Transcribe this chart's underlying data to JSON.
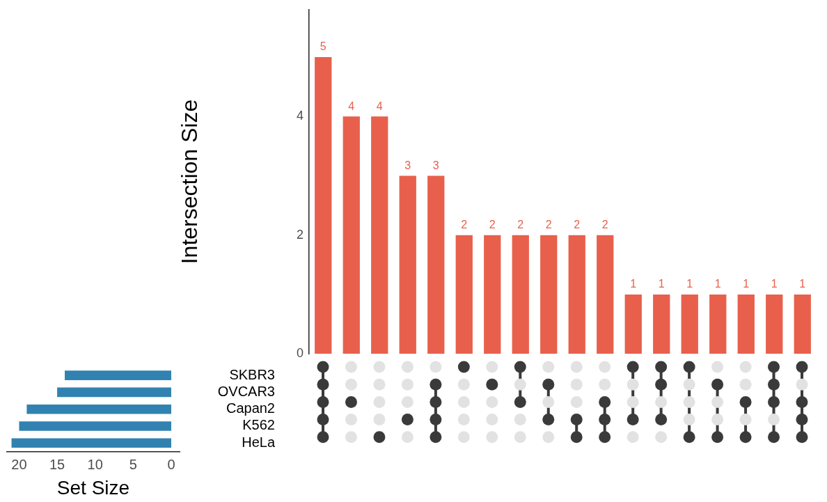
{
  "chart_data": [
    {
      "type": "bar",
      "ylabel": "Intersection Size",
      "categories": [
        null,
        null,
        null,
        null,
        null,
        null,
        null,
        null,
        null,
        null,
        null,
        null,
        null,
        null,
        null,
        null,
        null,
        null
      ],
      "values": [
        5,
        4,
        4,
        3,
        3,
        2,
        2,
        2,
        2,
        2,
        2,
        1,
        1,
        1,
        1,
        1,
        1,
        1
      ],
      "color": "#e8604c",
      "data_labels": true,
      "ylim": [
        0,
        5.8
      ],
      "yticks": [
        0,
        2,
        4
      ],
      "grid": false,
      "legend": false,
      "tick_labels": "y"
    },
    {
      "type": "bar",
      "orientation": "horizontal",
      "xlabel": "Set Size",
      "categories": [
        "SKBR3",
        "OVCAR3",
        "Capan2",
        "K562",
        "HeLa"
      ],
      "values": [
        14,
        15,
        19,
        20,
        21
      ],
      "color": "#3182b0",
      "xlim": [
        21.6,
        -1.1
      ],
      "xticks": [
        20,
        15,
        10,
        5,
        0
      ],
      "grid": false,
      "legend": false
    }
  ]
}
